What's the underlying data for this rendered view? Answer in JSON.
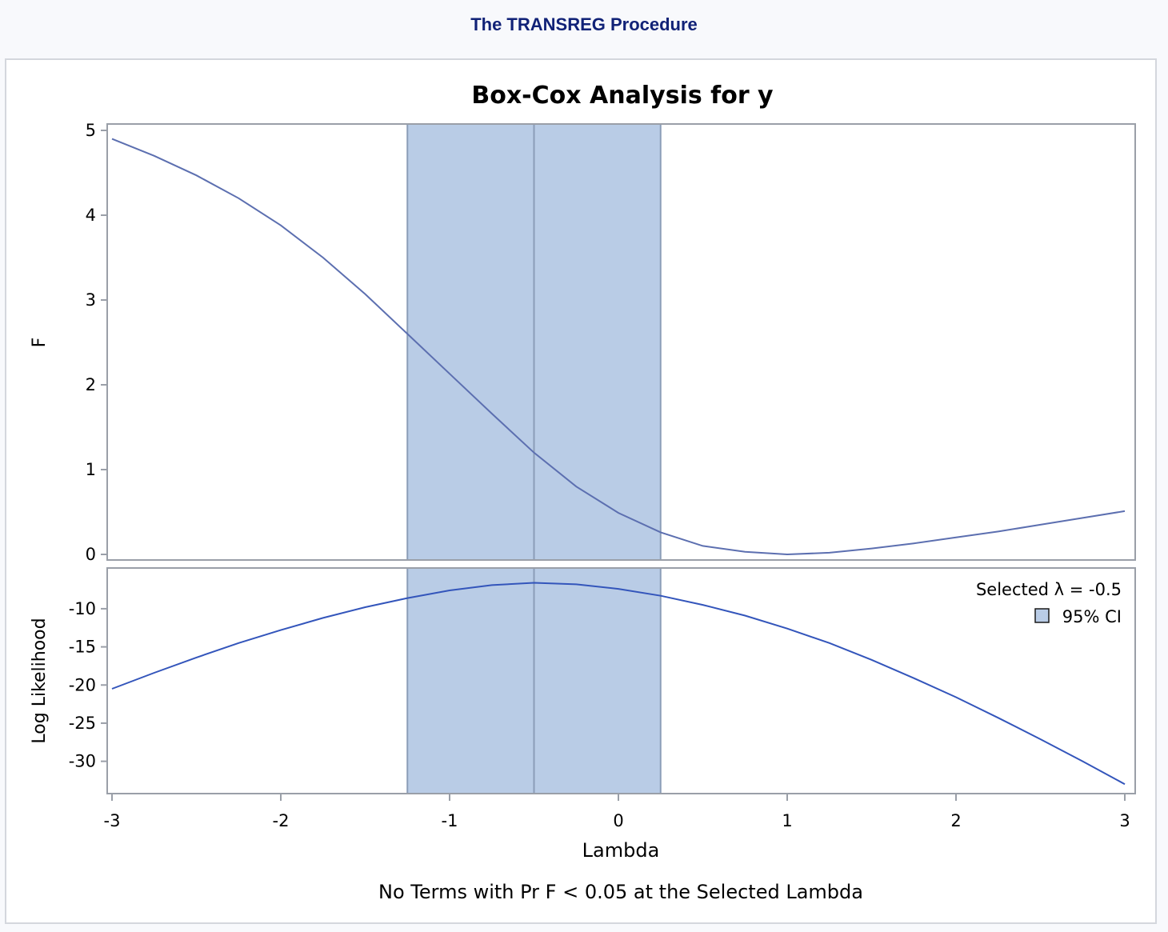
{
  "page": {
    "procedure_title": "The TRANSREG Procedure"
  },
  "chart_data": {
    "type": "line",
    "title": "Box-Cox Analysis for y",
    "xlabel": "Lambda",
    "footnote": "No Terms with Pr F < 0.05 at the Selected Lambda",
    "xlim": [
      -3,
      3
    ],
    "xticks": [
      -3,
      -2,
      -1,
      0,
      1,
      2,
      3
    ],
    "selected_lambda": -0.5,
    "ci": [
      -1.25,
      0.25
    ],
    "legend": {
      "selected_label": "Selected λ = -0.5",
      "ci_label": "95% CI",
      "placement": "top-right"
    },
    "colors": {
      "f_line": "#5c6fb0",
      "ll_line": "#3355bb",
      "ci_fill": "#b9cce6",
      "ci_border": "#8b9db8",
      "axis": "#9a9fa8"
    },
    "panels": [
      {
        "name": "F",
        "ylabel": "F",
        "ylim": [
          0,
          5
        ],
        "yticks": [
          0,
          1,
          2,
          3,
          4,
          5
        ],
        "series": {
          "x": [
            -3,
            -2.75,
            -2.5,
            -2.25,
            -2,
            -1.75,
            -1.5,
            -1.25,
            -1,
            -0.75,
            -0.5,
            -0.25,
            0,
            0.25,
            0.5,
            0.75,
            1,
            1.25,
            1.5,
            1.75,
            2,
            2.25,
            2.5,
            2.75,
            3
          ],
          "y": [
            4.9,
            4.7,
            4.47,
            4.2,
            3.88,
            3.5,
            3.07,
            2.6,
            2.13,
            1.66,
            1.2,
            0.8,
            0.49,
            0.26,
            0.1,
            0.03,
            0.0,
            0.02,
            0.07,
            0.13,
            0.2,
            0.27,
            0.35,
            0.43,
            0.51
          ]
        }
      },
      {
        "name": "Log Likelihood",
        "ylabel": "Log Likelihood",
        "ylim": [
          -33.5,
          -5.5
        ],
        "yticks": [
          -30,
          -25,
          -20,
          -15,
          -10
        ],
        "series": {
          "x": [
            -3,
            -2.75,
            -2.5,
            -2.25,
            -2,
            -1.75,
            -1.5,
            -1.25,
            -1,
            -0.75,
            -0.5,
            -0.25,
            0,
            0.25,
            0.5,
            0.75,
            1,
            1.25,
            1.5,
            1.75,
            2,
            2.25,
            2.5,
            2.75,
            3
          ],
          "y": [
            -20.5,
            -18.4,
            -16.4,
            -14.5,
            -12.8,
            -11.2,
            -9.8,
            -8.6,
            -7.6,
            -6.9,
            -6.6,
            -6.8,
            -7.4,
            -8.3,
            -9.5,
            -10.9,
            -12.6,
            -14.5,
            -16.7,
            -19.1,
            -21.6,
            -24.3,
            -27.1,
            -30.0,
            -33.0
          ]
        }
      }
    ]
  }
}
